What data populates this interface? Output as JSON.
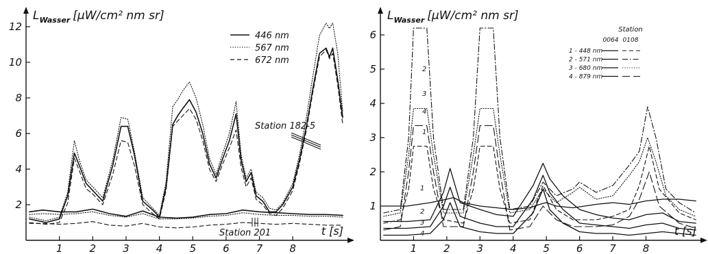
{
  "chart_data": [
    {
      "type": "line",
      "ylabel_main": "L",
      "ylabel_sub": "Wasser",
      "ylabel_unit": "[µW/cm² nm sr]",
      "xlabel": "t [s]",
      "xlim": [
        0,
        9.6
      ],
      "ylim": [
        0,
        12.5
      ],
      "xticks": [
        1,
        2,
        3,
        4,
        5,
        6,
        7,
        8
      ],
      "yticks": [
        2,
        4,
        6,
        8,
        10,
        12
      ],
      "legend": [
        "446 nm",
        "567 nm",
        "672 nm"
      ],
      "annotations": [
        "Station 182-5",
        "Station 201"
      ],
      "series": [
        {
          "name": "446 nm",
          "group": "Station 182-5",
          "dash": "solid",
          "width": 1.6,
          "x": [
            0.1,
            0.6,
            1.0,
            1.25,
            1.45,
            1.6,
            1.8,
            2.0,
            2.3,
            2.6,
            2.85,
            3.05,
            3.25,
            3.5,
            3.8,
            4.0,
            4.2,
            4.4,
            4.55,
            4.7,
            4.9,
            5.1,
            5.3,
            5.5,
            5.7,
            5.9,
            6.1,
            6.3,
            6.45,
            6.6,
            6.75,
            6.9,
            7.1,
            7.3,
            7.5,
            7.7,
            8.0,
            8.2,
            8.4,
            8.6,
            8.8,
            9.0,
            9.1,
            9.2,
            9.35,
            9.5
          ],
          "y": [
            1.2,
            1.0,
            1.2,
            2.5,
            4.9,
            4.2,
            3.2,
            2.8,
            2.2,
            4.2,
            6.4,
            6.4,
            4.8,
            2.2,
            1.7,
            1.3,
            3.0,
            6.5,
            7.0,
            7.4,
            7.9,
            7.2,
            6.0,
            4.3,
            3.5,
            4.6,
            5.6,
            7.1,
            4.5,
            3.3,
            3.8,
            2.5,
            2.2,
            1.6,
            1.6,
            2.0,
            3.0,
            4.5,
            6.3,
            8.5,
            10.5,
            10.8,
            10.3,
            10.8,
            9.0,
            6.9
          ]
        },
        {
          "name": "567 nm",
          "group": "Station 182-5",
          "dash": "dotted",
          "width": 1.1,
          "x": [
            0.1,
            0.6,
            1.0,
            1.25,
            1.45,
            1.6,
            1.8,
            2.0,
            2.3,
            2.6,
            2.85,
            3.05,
            3.25,
            3.5,
            3.8,
            4.0,
            4.2,
            4.4,
            4.55,
            4.7,
            4.9,
            5.1,
            5.3,
            5.5,
            5.7,
            5.9,
            6.1,
            6.3,
            6.45,
            6.6,
            6.75,
            6.9,
            7.1,
            7.3,
            7.5,
            7.7,
            8.0,
            8.2,
            8.4,
            8.6,
            8.8,
            9.0,
            9.1,
            9.2,
            9.35,
            9.5
          ],
          "y": [
            1.3,
            1.1,
            1.3,
            2.7,
            5.6,
            4.5,
            3.4,
            3.0,
            2.4,
            4.5,
            6.9,
            6.8,
            5.0,
            2.4,
            1.8,
            1.4,
            3.3,
            7.5,
            7.9,
            8.4,
            8.9,
            8.0,
            6.5,
            4.6,
            3.7,
            4.9,
            6.0,
            7.8,
            4.8,
            3.5,
            4.0,
            2.7,
            2.4,
            1.8,
            1.7,
            2.1,
            3.2,
            4.8,
            6.8,
            9.2,
            11.5,
            12.2,
            11.9,
            12.2,
            10.5,
            7.2
          ]
        },
        {
          "name": "672 nm",
          "group": "Station 182-5",
          "dash": "dashed",
          "width": 1.1,
          "x": [
            0.1,
            0.6,
            1.0,
            1.25,
            1.45,
            1.6,
            1.8,
            2.0,
            2.3,
            2.6,
            2.85,
            3.05,
            3.25,
            3.5,
            3.8,
            4.0,
            4.2,
            4.4,
            4.55,
            4.7,
            4.9,
            5.1,
            5.3,
            5.5,
            5.7,
            5.9,
            6.1,
            6.3,
            6.45,
            6.6,
            6.75,
            6.9,
            7.1,
            7.3,
            7.5,
            7.7,
            8.0,
            8.2,
            8.4,
            8.6,
            8.8,
            9.0,
            9.1,
            9.2,
            9.35,
            9.5
          ],
          "y": [
            1.0,
            0.9,
            1.0,
            2.1,
            4.6,
            3.9,
            2.9,
            2.6,
            2.0,
            3.7,
            5.6,
            5.5,
            4.2,
            2.0,
            1.5,
            1.2,
            2.8,
            6.4,
            6.7,
            7.0,
            7.4,
            6.8,
            5.6,
            4.0,
            3.3,
            4.3,
            5.2,
            6.2,
            4.1,
            3.0,
            3.5,
            2.3,
            2.0,
            1.5,
            1.4,
            1.8,
            2.8,
            4.3,
            6.1,
            8.3,
            10.3,
            10.7,
            10.2,
            10.5,
            8.7,
            6.5
          ]
        },
        {
          "name": "446 nm",
          "group": "Station 201",
          "dash": "solid",
          "width": 1.6,
          "x": [
            0.1,
            0.5,
            1.0,
            1.5,
            2.0,
            2.5,
            3.0,
            3.5,
            4.0,
            4.5,
            5.0,
            5.5,
            6.0,
            6.5,
            7.0,
            7.5,
            8.0,
            8.5,
            9.0,
            9.5
          ],
          "y": [
            1.6,
            1.7,
            1.6,
            1.6,
            1.75,
            1.5,
            1.35,
            1.65,
            1.3,
            1.25,
            1.3,
            1.45,
            1.5,
            1.7,
            1.6,
            1.55,
            1.5,
            1.45,
            1.45,
            1.4
          ]
        },
        {
          "name": "567 nm",
          "group": "Station 201",
          "dash": "dotted",
          "width": 1.1,
          "x": [
            0.1,
            0.5,
            1.0,
            1.5,
            2.0,
            2.5,
            3.0,
            3.5,
            4.0,
            4.5,
            5.0,
            5.5,
            6.0,
            6.5,
            7.0,
            7.5,
            8.0,
            8.5,
            9.0,
            9.5
          ],
          "y": [
            1.45,
            1.5,
            1.45,
            1.5,
            1.6,
            1.4,
            1.3,
            1.5,
            1.2,
            1.2,
            1.25,
            1.35,
            1.4,
            1.55,
            1.45,
            1.4,
            1.4,
            1.35,
            1.35,
            1.3
          ]
        },
        {
          "name": "672 nm",
          "group": "Station 201",
          "dash": "dashed",
          "width": 1.1,
          "x": [
            0.1,
            0.5,
            1.0,
            1.5,
            2.0,
            2.5,
            3.0,
            3.5,
            4.0,
            4.5,
            5.0,
            5.5,
            6.0,
            6.5,
            7.0,
            7.5,
            8.0,
            8.5,
            9.0,
            9.5
          ],
          "y": [
            0.95,
            0.95,
            0.9,
            0.95,
            1.05,
            0.85,
            0.8,
            0.95,
            0.75,
            0.7,
            0.75,
            0.85,
            0.9,
            1.0,
            0.95,
            0.9,
            0.95,
            0.9,
            0.85,
            0.85
          ]
        }
      ]
    },
    {
      "type": "line",
      "ylabel_main": "L",
      "ylabel_sub": "Wasser",
      "ylabel_unit": "[µW/cm² nm sr]",
      "xlabel": "t [s]",
      "xlim": [
        0,
        9.6
      ],
      "ylim": [
        0,
        6.5
      ],
      "xticks": [
        1,
        2,
        3,
        4,
        5,
        6,
        7,
        8
      ],
      "yticks": [
        1,
        2,
        3,
        4,
        5,
        6
      ],
      "legend_title": "Station",
      "legend_columns": [
        "0064",
        "0108"
      ],
      "legend_rows": [
        "1 - 448 nm",
        "2 - 571 nm",
        "3 - 680 nm",
        "4 - 879 nm"
      ],
      "peak_labels": [
        "2",
        "3",
        "4",
        "1"
      ],
      "low_labels": [
        "1",
        "2",
        "3",
        "4"
      ],
      "series": [
        {
          "name": "1 - 448 nm",
          "group": "0064",
          "dash": "solid",
          "width": 1.3,
          "x": [
            0.1,
            0.8,
            1.5,
            2.0,
            2.2,
            2.5,
            3.0,
            3.5,
            4.0,
            4.5,
            4.8,
            5.0,
            5.3,
            5.8,
            6.5,
            7.0,
            7.5,
            8.0,
            8.5,
            9.0,
            9.5
          ],
          "y": [
            1.0,
            1.0,
            1.1,
            1.2,
            1.25,
            1.1,
            1.0,
            0.95,
            0.9,
            0.95,
            1.05,
            1.1,
            1.0,
            0.95,
            1.05,
            1.1,
            1.05,
            1.15,
            1.2,
            1.2,
            1.15
          ]
        },
        {
          "name": "2 - 571 nm",
          "group": "0064",
          "dash": "solid",
          "width": 1.3,
          "x": [
            0.1,
            0.8,
            1.5,
            1.9,
            2.1,
            2.4,
            3.0,
            3.5,
            4.0,
            4.6,
            4.9,
            5.1,
            5.5,
            6.0,
            6.5,
            7.0,
            7.5,
            8.0,
            8.5,
            9.0,
            9.5
          ],
          "y": [
            0.55,
            0.55,
            0.6,
            1.4,
            2.1,
            1.1,
            0.9,
            0.75,
            0.7,
            1.6,
            2.25,
            1.8,
            1.3,
            0.9,
            0.75,
            0.65,
            0.6,
            0.75,
            0.8,
            0.55,
            0.5
          ]
        },
        {
          "name": "3 - 680 nm",
          "group": "0064",
          "dash": "solid",
          "width": 1.3,
          "x": [
            0.1,
            0.8,
            1.5,
            1.9,
            2.1,
            2.4,
            3.0,
            3.5,
            4.0,
            4.6,
            4.9,
            5.1,
            5.5,
            6.0,
            6.5,
            7.0,
            7.5,
            8.0,
            8.5,
            9.0,
            9.5
          ],
          "y": [
            0.35,
            0.35,
            0.4,
            1.0,
            1.55,
            0.7,
            0.5,
            0.4,
            0.4,
            1.2,
            1.9,
            1.4,
            0.9,
            0.5,
            0.45,
            0.4,
            0.35,
            0.45,
            0.5,
            0.35,
            0.3
          ]
        },
        {
          "name": "4 - 879 nm",
          "group": "0064",
          "dash": "solid",
          "width": 1.3,
          "x": [
            0.1,
            0.8,
            1.5,
            1.9,
            2.1,
            2.4,
            3.0,
            3.5,
            4.0,
            4.6,
            4.9,
            5.1,
            5.5,
            6.0,
            6.5,
            7.0,
            7.5,
            8.0,
            8.5,
            9.0,
            9.5
          ],
          "y": [
            0.15,
            0.15,
            0.2,
            0.6,
            1.1,
            0.4,
            0.25,
            0.2,
            0.2,
            0.8,
            1.5,
            0.9,
            0.5,
            0.25,
            0.2,
            0.2,
            0.15,
            0.2,
            0.25,
            0.2,
            0.15
          ]
        },
        {
          "name": "1 - 448 nm",
          "group": "0108",
          "dash": "dashed",
          "width": 1.1,
          "x": [
            0.1,
            0.6,
            0.85,
            1.0,
            1.4,
            1.6,
            1.9,
            2.5,
            2.8,
            3.0,
            3.4,
            3.6,
            3.9,
            4.5,
            4.9,
            5.3,
            5.8,
            6.5,
            7.0,
            7.5,
            7.8,
            8.1,
            8.4,
            9.0,
            9.5
          ],
          "y": [
            0.5,
            0.6,
            1.5,
            2.75,
            2.75,
            1.5,
            0.6,
            0.5,
            1.5,
            2.75,
            2.75,
            1.5,
            0.5,
            0.6,
            1.6,
            0.9,
            0.6,
            0.6,
            0.7,
            0.9,
            1.6,
            2.75,
            1.5,
            0.8,
            0.6
          ]
        },
        {
          "name": "2 - 571 nm",
          "group": "0108",
          "dash": "dashdot",
          "width": 1.1,
          "x": [
            0.1,
            0.6,
            0.85,
            1.0,
            1.4,
            1.6,
            1.9,
            2.5,
            2.8,
            3.0,
            3.4,
            3.6,
            3.9,
            4.5,
            4.9,
            5.3,
            5.8,
            6.0,
            6.5,
            7.0,
            7.5,
            7.8,
            8.05,
            8.3,
            8.6,
            9.0,
            9.5
          ],
          "y": [
            0.8,
            0.9,
            3.0,
            6.2,
            6.2,
            3.0,
            0.9,
            0.9,
            3.0,
            6.2,
            6.2,
            3.0,
            0.9,
            1.0,
            1.7,
            1.3,
            1.5,
            1.7,
            1.4,
            1.6,
            2.2,
            2.6,
            3.9,
            3.0,
            1.5,
            1.1,
            0.8
          ]
        },
        {
          "name": "3 - 680 nm",
          "group": "0108",
          "dash": "dotted",
          "width": 1.1,
          "x": [
            0.1,
            0.6,
            0.85,
            1.0,
            1.4,
            1.6,
            1.9,
            2.5,
            2.8,
            3.0,
            3.4,
            3.6,
            3.9,
            4.5,
            4.9,
            5.3,
            5.8,
            6.0,
            6.5,
            7.0,
            7.5,
            7.8,
            8.05,
            8.3,
            8.6,
            9.0,
            9.5
          ],
          "y": [
            0.7,
            0.8,
            2.5,
            3.85,
            3.85,
            2.5,
            0.8,
            0.8,
            2.5,
            3.85,
            3.85,
            2.5,
            0.8,
            0.9,
            1.5,
            1.1,
            1.4,
            1.55,
            1.2,
            1.3,
            1.9,
            2.3,
            3.0,
            2.3,
            1.3,
            0.9,
            0.7
          ]
        },
        {
          "name": "4 - 879 nm",
          "group": "0108",
          "dash": "longdash",
          "width": 1.1,
          "x": [
            0.1,
            0.6,
            0.85,
            1.0,
            1.4,
            1.6,
            1.9,
            2.5,
            2.8,
            3.0,
            3.4,
            3.6,
            3.9,
            4.5,
            4.9,
            5.3,
            5.8,
            6.5,
            7.0,
            7.5,
            7.8,
            8.1,
            8.4,
            9.0,
            9.5
          ],
          "y": [
            0.3,
            0.4,
            2.0,
            3.35,
            3.35,
            2.0,
            0.4,
            0.4,
            2.0,
            3.35,
            3.35,
            2.0,
            0.3,
            0.4,
            1.0,
            0.6,
            0.4,
            0.4,
            0.45,
            0.7,
            1.2,
            2.0,
            1.0,
            0.5,
            0.35
          ]
        }
      ]
    }
  ]
}
